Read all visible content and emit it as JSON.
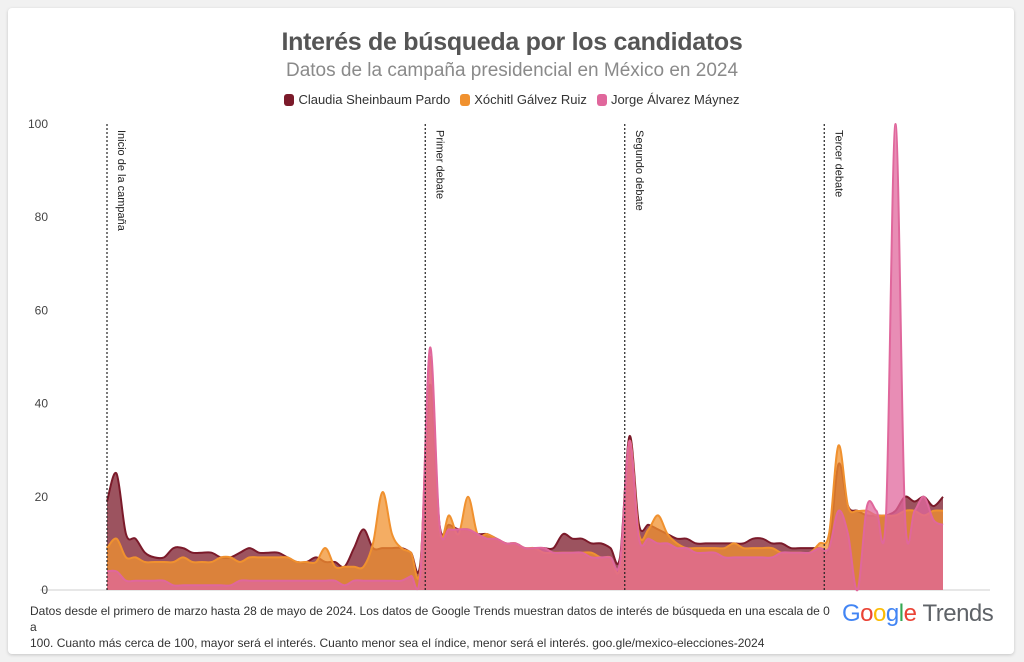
{
  "chart_data": {
    "type": "area",
    "title": "Interés de búsqueda por los candidatos",
    "subtitle": "Datos de la campaña presidencial en México en 2024",
    "ylim": [
      0,
      100
    ],
    "yticks": [
      0,
      20,
      40,
      60,
      80,
      100
    ],
    "xlabel": "",
    "ylabel": "",
    "x": [
      0,
      1,
      2,
      3,
      4,
      5,
      6,
      7,
      8,
      9,
      10,
      11,
      12,
      13,
      14,
      15,
      16,
      17,
      18,
      19,
      20,
      21,
      22,
      23,
      24,
      25,
      26,
      27,
      28,
      29,
      30,
      31,
      32,
      33,
      34,
      35,
      36,
      37,
      38,
      39,
      40,
      41,
      42,
      43,
      44,
      45,
      46,
      47,
      48,
      49,
      50,
      51,
      52,
      53,
      54,
      55,
      56,
      57,
      58,
      59,
      60,
      61,
      62,
      63,
      64,
      65,
      66,
      67,
      68,
      69,
      70,
      71,
      72,
      73,
      74,
      75,
      76,
      77,
      78,
      79,
      80,
      81,
      82,
      83,
      84,
      85,
      86,
      87,
      88
    ],
    "series": [
      {
        "name": "Claudia Sheinbaum Pardo",
        "color": "#7b1a2a",
        "values": [
          19,
          25,
          12,
          11,
          8,
          7,
          7,
          9,
          9,
          8,
          8,
          8,
          7,
          7,
          8,
          9,
          8,
          8,
          8,
          7,
          6,
          6,
          7,
          6,
          6,
          5,
          9,
          13,
          9,
          9,
          9,
          9,
          8,
          6,
          44,
          14,
          14,
          13,
          13,
          12,
          12,
          11,
          10,
          10,
          9,
          9,
          9,
          9,
          12,
          11,
          11,
          10,
          10,
          9,
          7,
          33,
          14,
          14,
          13,
          12,
          11,
          11,
          10,
          10,
          10,
          10,
          10,
          10,
          11,
          11,
          10,
          10,
          9,
          9,
          9,
          9,
          9,
          27,
          18,
          17,
          16,
          16,
          16,
          17,
          20,
          19,
          20,
          18,
          20
        ]
      },
      {
        "name": "Xóchitl Gálvez Ruiz",
        "color": "#f0912f",
        "values": [
          9,
          11,
          7,
          7,
          6,
          6,
          6,
          6,
          7,
          6,
          6,
          6,
          7,
          7,
          6,
          7,
          7,
          7,
          7,
          7,
          6,
          6,
          6,
          9,
          5,
          5,
          5,
          5,
          10,
          21,
          12,
          9,
          8,
          5,
          50,
          13,
          16,
          12,
          20,
          12,
          12,
          11,
          10,
          10,
          9,
          9,
          8,
          8,
          8,
          8,
          8,
          8,
          7,
          7,
          5,
          32,
          12,
          13,
          16,
          12,
          10,
          9,
          9,
          9,
          9,
          9,
          10,
          9,
          9,
          9,
          9,
          8,
          8,
          8,
          8,
          10,
          12,
          31,
          18,
          17,
          17,
          16,
          16,
          16,
          17,
          17,
          16,
          17,
          17
        ]
      },
      {
        "name": "Jorge Álvarez Máynez",
        "color": "#e0679c",
        "values": [
          4,
          4,
          2,
          2,
          2,
          2,
          2,
          1,
          1,
          1,
          1,
          1,
          1,
          1,
          2,
          2,
          2,
          2,
          2,
          2,
          2,
          2,
          2,
          2,
          2,
          1,
          2,
          2,
          2,
          2,
          2,
          2,
          3,
          4,
          52,
          14,
          13,
          13,
          13,
          12,
          11,
          11,
          10,
          10,
          9,
          9,
          9,
          8,
          8,
          8,
          8,
          7,
          7,
          7,
          6,
          32,
          11,
          11,
          10,
          10,
          9,
          9,
          8,
          8,
          8,
          7,
          7,
          7,
          7,
          7,
          7,
          8,
          8,
          8,
          8,
          9,
          9,
          17,
          12,
          0,
          18,
          17,
          16,
          100,
          16,
          17,
          20,
          15,
          14
        ]
      }
    ],
    "events": [
      {
        "label": "Inicio de la campaña",
        "x": 0
      },
      {
        "label": "Primer debate",
        "x": 33.5
      },
      {
        "label": "Segundo debate",
        "x": 54.5
      },
      {
        "label": "Tercer debate",
        "x": 75.5
      }
    ]
  },
  "footer": {
    "line1": "Datos desde el primero de marzo hasta 28 de mayo de 2024. Los datos de Google Trends muestran datos de interés de búsqueda en una escala de 0 a",
    "line2": "100. Cuanto más cerca de 100, mayor será el interés. Cuanto menor sea el índice, menor será el interés. goo.gle/mexico-elecciones-2024"
  },
  "brand": {
    "g1": "G",
    "g2": "o",
    "g3": "o",
    "g1b": "g",
    "g4": "l",
    "g2b": "e",
    "trends": "Trends"
  }
}
